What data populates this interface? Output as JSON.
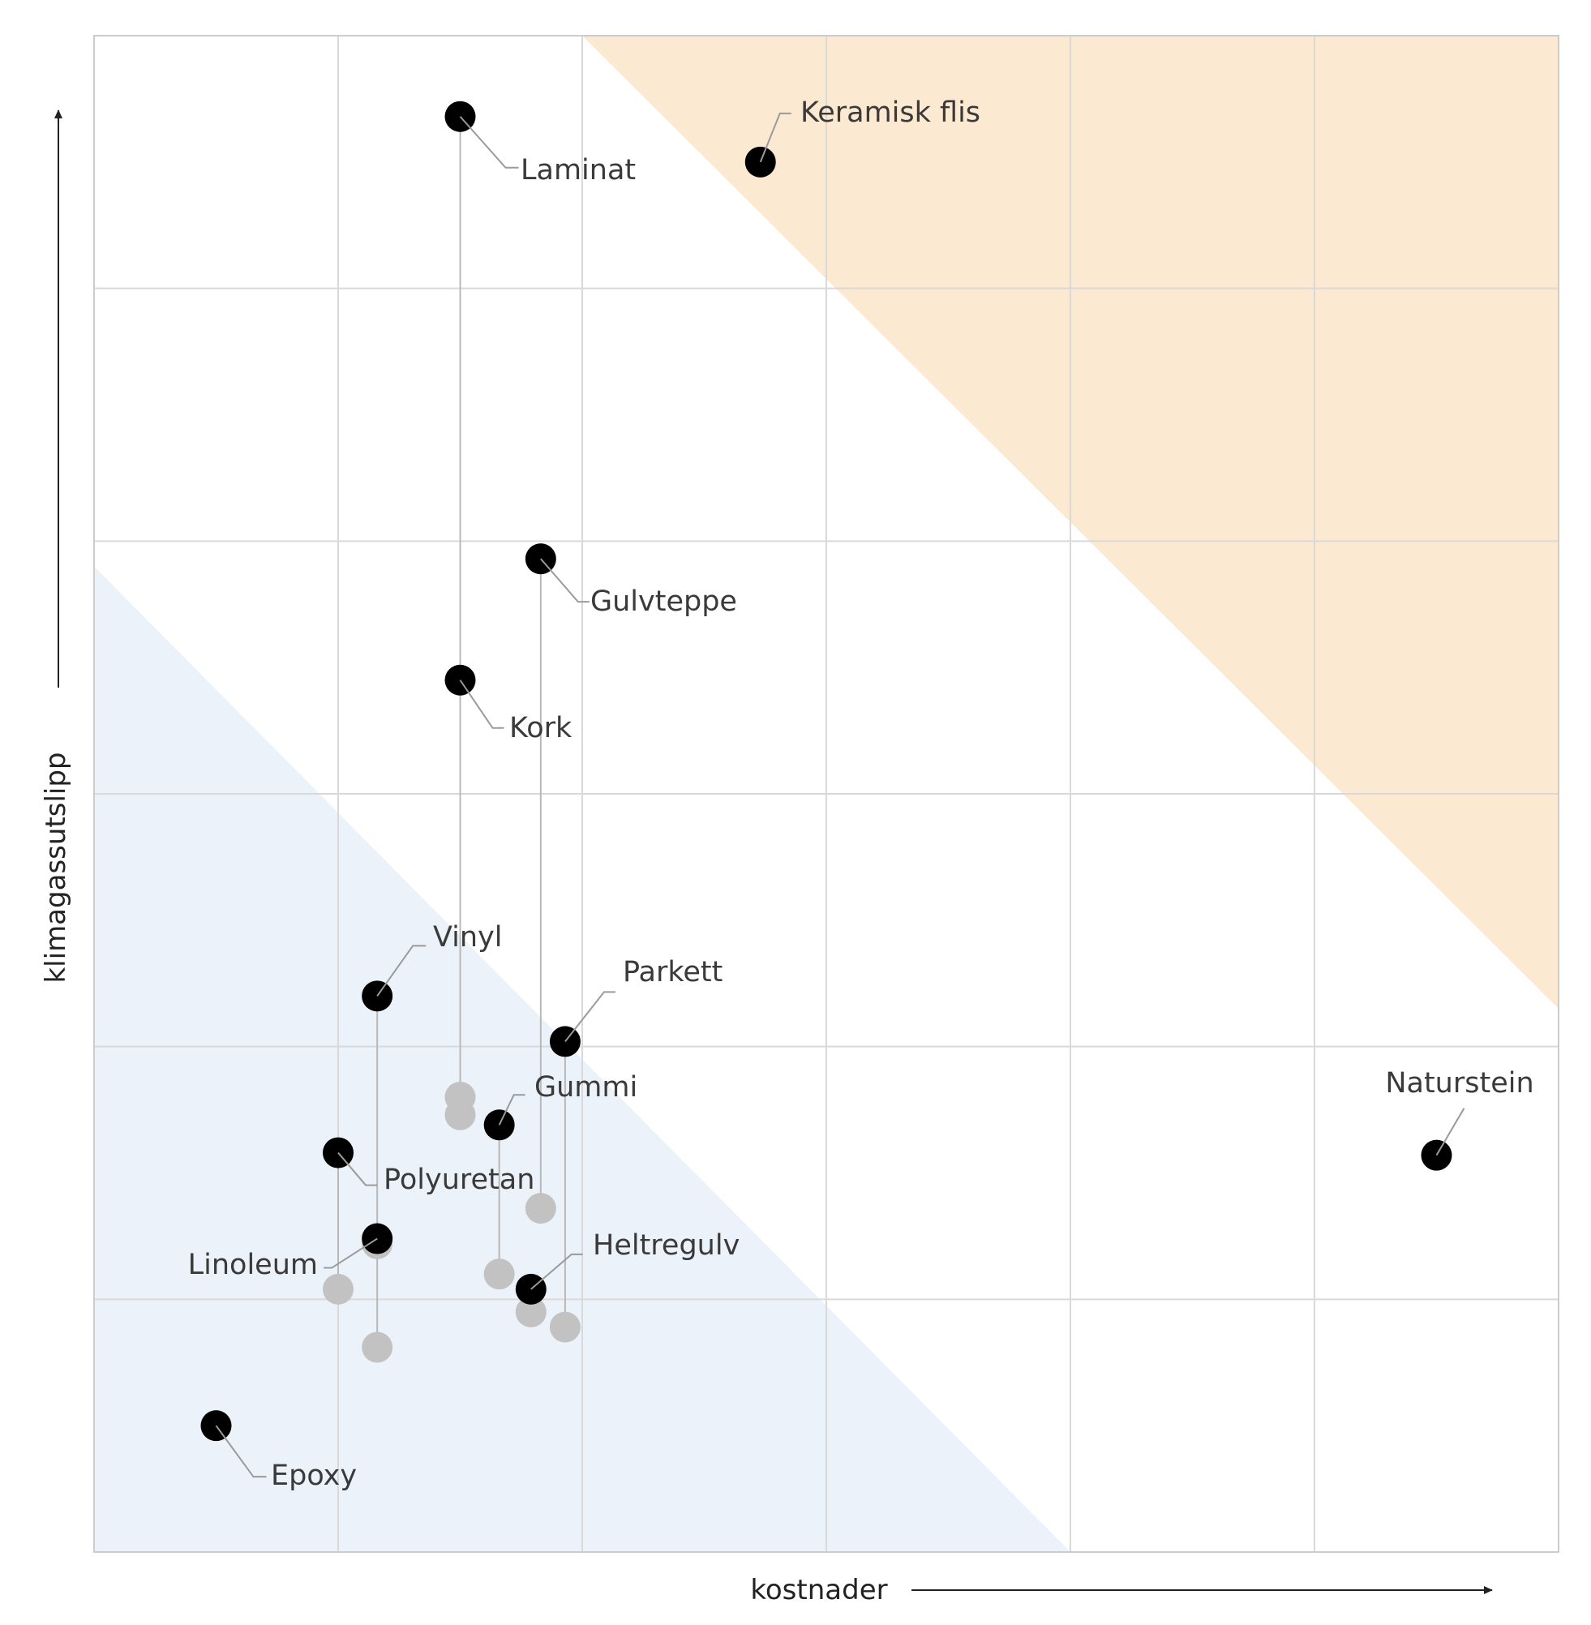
{
  "chart_data": {
    "type": "scatter",
    "title": "",
    "xlabel": "kostnader",
    "ylabel": "klimagassutslipp",
    "xlim": [
      0,
      6
    ],
    "ylim": [
      0,
      6
    ],
    "grid": true,
    "axis_ticks_shown": false,
    "regions": [
      {
        "fill": "#fbe9d1",
        "corners": [
          [
            2.0,
            6.0
          ],
          [
            6.0,
            6.0
          ],
          [
            6.0,
            2.15
          ]
        ]
      },
      {
        "fill": "#ecf2f9",
        "corners": [
          [
            0.0,
            3.9
          ],
          [
            0.0,
            0.0
          ],
          [
            4.0,
            0.0
          ]
        ]
      }
    ],
    "points": [
      {
        "label": "Laminat",
        "x": 1.5,
        "y": 5.68,
        "baseline_y": [
          1.8,
          1.73
        ]
      },
      {
        "label": "Keramisk flis",
        "x": 2.73,
        "y": 5.5,
        "baseline_y": []
      },
      {
        "label": "Gulvteppe",
        "x": 1.83,
        "y": 3.93,
        "baseline_y": [
          1.36
        ]
      },
      {
        "label": "Kork",
        "x": 1.5,
        "y": 3.45,
        "baseline_y": []
      },
      {
        "label": "Vinyl",
        "x": 1.16,
        "y": 2.2,
        "baseline_y": [
          0.81
        ]
      },
      {
        "label": "Parkett",
        "x": 1.93,
        "y": 2.02,
        "baseline_y": [
          0.89
        ]
      },
      {
        "label": "Gummi",
        "x": 1.66,
        "y": 1.69,
        "baseline_y": [
          1.1
        ]
      },
      {
        "label": "Naturstein",
        "x": 5.5,
        "y": 1.57,
        "baseline_y": []
      },
      {
        "label": "Polyuretan",
        "x": 1.0,
        "y": 1.58,
        "baseline_y": [
          1.04
        ]
      },
      {
        "label": "Linoleum",
        "x": 1.16,
        "y": 1.24,
        "baseline_y": [
          1.22
        ]
      },
      {
        "label": "Heltregulv",
        "x": 1.79,
        "y": 1.04,
        "baseline_y": [
          0.95
        ]
      },
      {
        "label": "Epoxy",
        "x": 0.5,
        "y": 0.5,
        "baseline_y": []
      }
    ],
    "colors": {
      "point": "#000000",
      "baseline_point": "#c2c2c2",
      "connector": "#b8b8b8",
      "grid": "#d9d9d9",
      "border": "#cccccc",
      "text": "#3a3a3a",
      "axis": "#222222"
    }
  }
}
